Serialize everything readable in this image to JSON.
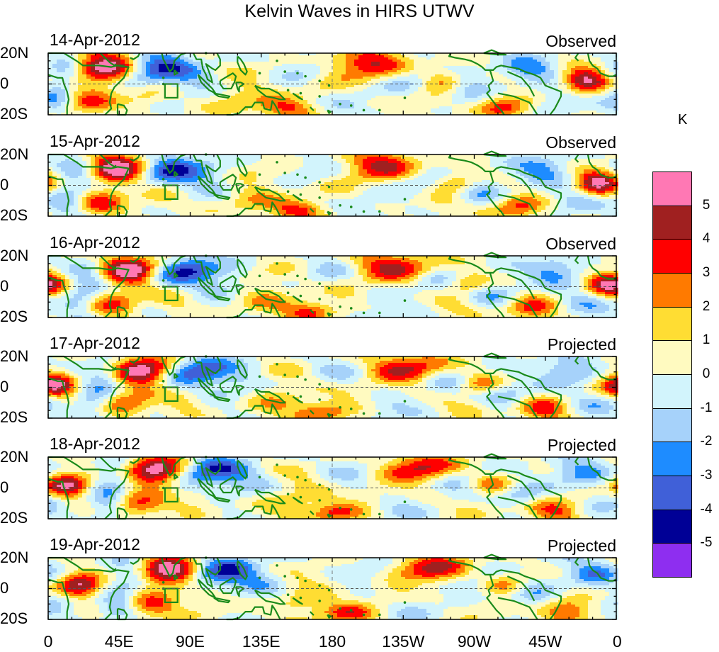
{
  "title": "Kelvin Waves in HIRS UTWV",
  "colors": {
    "land": "#1a8a1a",
    "pos": [
      "#fffac0",
      "#ffdd33",
      "#ff7a00",
      "#ff0000",
      "#a02020",
      "#ff78b4"
    ],
    "neg": [
      "#d2f4fc",
      "#a6d2fa",
      "#1e8cff",
      "#4060d8",
      "#000096",
      "#8e2ef0"
    ]
  },
  "panels": [
    {
      "date": "14-Apr-2012",
      "status": "Observed",
      "shift": 0
    },
    {
      "date": "15-Apr-2012",
      "status": "Observed",
      "shift": 8
    },
    {
      "date": "16-Apr-2012",
      "status": "Observed",
      "shift": 16
    },
    {
      "date": "17-Apr-2012",
      "status": "Projected",
      "shift": 24
    },
    {
      "date": "18-Apr-2012",
      "status": "Projected",
      "shift": 32
    },
    {
      "date": "19-Apr-2012",
      "status": "Projected",
      "shift": 40
    }
  ],
  "y_ticks": [
    "20N",
    "0",
    "20S"
  ],
  "x_ticks": [
    {
      "label": "0",
      "lon": 0
    },
    {
      "label": "45E",
      "lon": 45
    },
    {
      "label": "90E",
      "lon": 90
    },
    {
      "label": "135E",
      "lon": 135
    },
    {
      "label": "180",
      "lon": 180
    },
    {
      "label": "135W",
      "lon": 225
    },
    {
      "label": "90W",
      "lon": 270
    },
    {
      "label": "45W",
      "lon": 315
    },
    {
      "label": "0",
      "lon": 360
    }
  ],
  "colorbar": {
    "unit": "K",
    "labels": [
      "5",
      "4",
      "3",
      "2",
      "1",
      "0",
      "-1",
      "-2",
      "-3",
      "-4",
      "-5"
    ],
    "colors": [
      "#ff78b4",
      "#a02020",
      "#ff0000",
      "#ff7a00",
      "#ffdd33",
      "#fffac0",
      "#d2f4fc",
      "#a6d2fa",
      "#1e8cff",
      "#4060d8",
      "#000096",
      "#8e2ef0"
    ]
  },
  "anomalies": [
    {
      "lon": 35,
      "lat": 11,
      "amp": 6.0,
      "rx": 14,
      "ry": 7
    },
    {
      "lon": 25,
      "lat": -11,
      "amp": 3.2,
      "rx": 12,
      "ry": 6
    },
    {
      "lon": 12,
      "lat": 8,
      "amp": -2.2,
      "rx": 10,
      "ry": 8
    },
    {
      "lon": 5,
      "lat": -10,
      "amp": -2.0,
      "rx": 8,
      "ry": 7
    },
    {
      "lon": 60,
      "lat": 6,
      "amp": -2.0,
      "rx": 10,
      "ry": 6
    },
    {
      "lon": 75,
      "lat": 12,
      "amp": -3.5,
      "rx": 12,
      "ry": 6
    },
    {
      "lon": 62,
      "lat": -8,
      "amp": 1.4,
      "rx": 10,
      "ry": 6
    },
    {
      "lon": 95,
      "lat": 3,
      "amp": -1.4,
      "rx": 14,
      "ry": 8
    },
    {
      "lon": 125,
      "lat": 8,
      "amp": 1.2,
      "rx": 14,
      "ry": 6
    },
    {
      "lon": 120,
      "lat": -10,
      "amp": 1.8,
      "rx": 14,
      "ry": 7
    },
    {
      "lon": 150,
      "lat": -16,
      "amp": 3.2,
      "rx": 12,
      "ry": 5
    },
    {
      "lon": 165,
      "lat": 10,
      "amp": -1.6,
      "rx": 14,
      "ry": 6
    },
    {
      "lon": 175,
      "lat": -5,
      "amp": 1.2,
      "rx": 12,
      "ry": 6
    },
    {
      "lon": 205,
      "lat": 12,
      "amp": 4.6,
      "rx": 20,
      "ry": 7
    },
    {
      "lon": 228,
      "lat": 5,
      "amp": -2.2,
      "rx": 14,
      "ry": 7
    },
    {
      "lon": 250,
      "lat": 2,
      "amp": 2.8,
      "rx": 10,
      "ry": 5
    },
    {
      "lon": 265,
      "lat": -5,
      "amp": -2.0,
      "rx": 12,
      "ry": 6
    },
    {
      "lon": 290,
      "lat": -14,
      "amp": 3.4,
      "rx": 12,
      "ry": 6
    },
    {
      "lon": 305,
      "lat": 10,
      "amp": -2.6,
      "rx": 12,
      "ry": 6
    },
    {
      "lon": 340,
      "lat": 2,
      "amp": 5.4,
      "rx": 10,
      "ry": 6
    },
    {
      "lon": 325,
      "lat": -10,
      "amp": -1.6,
      "rx": 12,
      "ry": 6
    },
    {
      "lon": 190,
      "lat": -12,
      "amp": -1.2,
      "rx": 14,
      "ry": 6
    },
    {
      "lon": 240,
      "lat": -12,
      "amp": 1.4,
      "rx": 14,
      "ry": 5
    }
  ]
}
